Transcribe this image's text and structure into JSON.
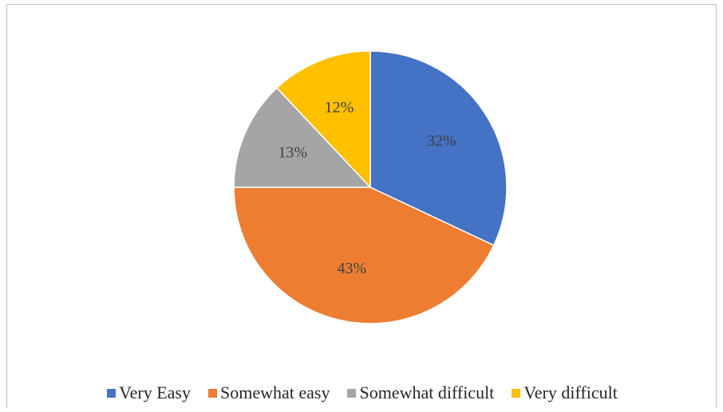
{
  "chart_data": {
    "type": "pie",
    "title": "",
    "slices": [
      {
        "name": "Very Easy",
        "value": 32,
        "label": "32%",
        "color": "#4472C4"
      },
      {
        "name": "Somewhat easy",
        "value": 43,
        "label": "43%",
        "color": "#ED7D31"
      },
      {
        "name": "Somewhat difficult",
        "value": 13,
        "label": "13%",
        "color": "#A5A5A5"
      },
      {
        "name": "Very difficult",
        "value": 12,
        "label": "12%",
        "color": "#FFC000"
      }
    ],
    "legend_position": "bottom",
    "start_angle": "12 o'clock",
    "direction": "clockwise"
  },
  "legend": {
    "items": [
      {
        "label": "Very Easy",
        "color": "#4472C4"
      },
      {
        "label": "Somewhat easy",
        "color": "#ED7D31"
      },
      {
        "label": "Somewhat difficult",
        "color": "#A5A5A5"
      },
      {
        "label": "Very difficult",
        "color": "#FFC000"
      }
    ]
  }
}
